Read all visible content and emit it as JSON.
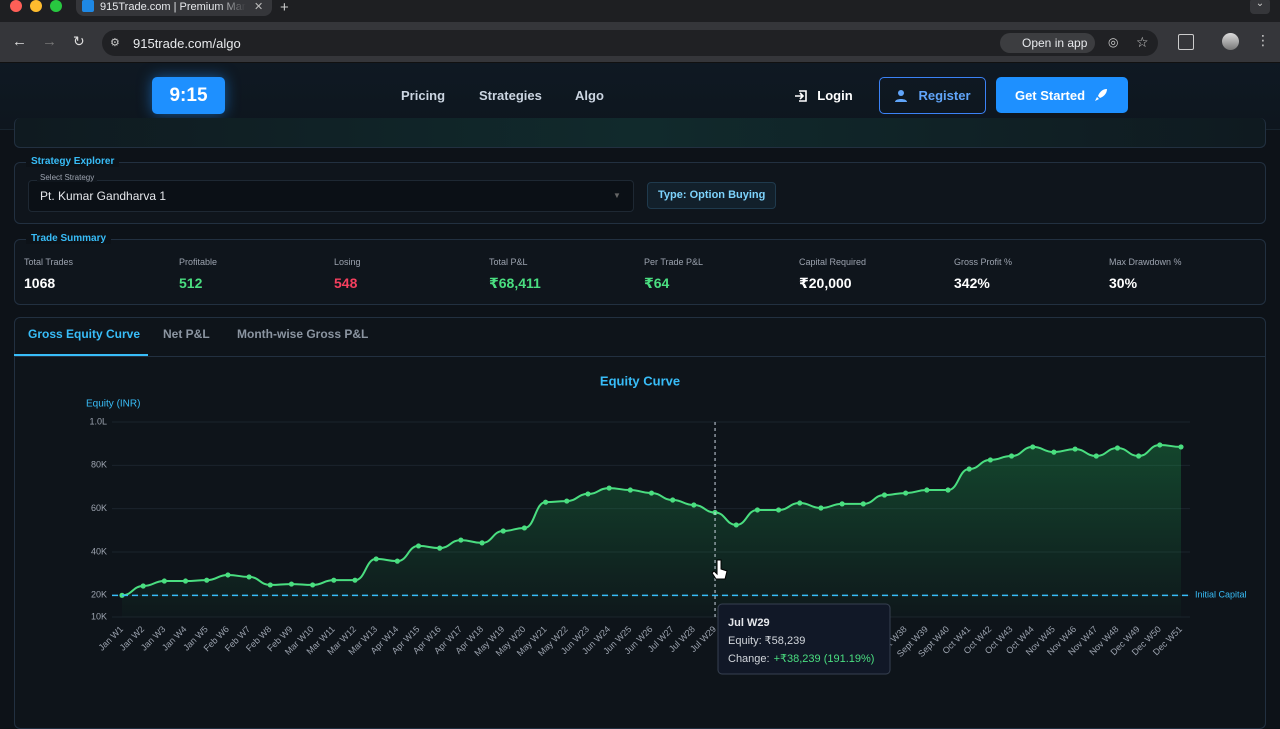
{
  "browser": {
    "tab_title": "915Trade.com | Premium Mar",
    "url": "915trade.com/algo",
    "open_in_app": "Open in app"
  },
  "nav": {
    "logo": "9:15",
    "links": [
      "Pricing",
      "Strategies",
      "Algo"
    ],
    "login": "Login",
    "register": "Register",
    "get_started": "Get Started"
  },
  "strategy_explorer": {
    "title": "Strategy Explorer",
    "select_label": "Select Strategy",
    "selected": "Pt. Kumar Gandharva 1",
    "type_badge": "Type: Option Buying"
  },
  "summary": {
    "title": "Trade Summary",
    "stats": [
      {
        "label": "Total Trades",
        "value": "1068",
        "color": "#ffffff"
      },
      {
        "label": "Profitable",
        "value": "512",
        "color": "#4ade80"
      },
      {
        "label": "Losing",
        "value": "548",
        "color": "#f43f5e"
      },
      {
        "label": "Total P&L",
        "value": "₹68,411",
        "color": "#4ade80"
      },
      {
        "label": "Per Trade P&L",
        "value": "₹64",
        "color": "#4ade80"
      },
      {
        "label": "Capital Required",
        "value": "₹20,000",
        "color": "#ffffff"
      },
      {
        "label": "Gross Profit %",
        "value": "342%",
        "color": "#ffffff"
      },
      {
        "label": "Max Drawdown %",
        "value": "30%",
        "color": "#ffffff"
      }
    ]
  },
  "tabs": [
    "Gross Equity Curve",
    "Net P&L",
    "Month-wise Gross P&L"
  ],
  "chart_data": {
    "type": "line",
    "title": "Equity Curve",
    "y_label": "Equity (INR)",
    "categories": [
      "Jan W1",
      "Jan W2",
      "Jan W3",
      "Jan W4",
      "Jan W5",
      "Feb W6",
      "Feb W7",
      "Feb W8",
      "Feb W9",
      "Mar W10",
      "Mar W11",
      "Mar W12",
      "Mar W13",
      "Apr W14",
      "Apr W15",
      "Apr W16",
      "Apr W17",
      "Apr W18",
      "May W19",
      "May W20",
      "May W21",
      "May W22",
      "Jun W23",
      "Jun W24",
      "Jun W25",
      "Jun W26",
      "Jul W27",
      "Jul W28",
      "Jul W29",
      null,
      null,
      null,
      null,
      null,
      null,
      null,
      null,
      "Sept W38",
      "Sept W39",
      "Sept W40",
      "Oct W41",
      "Oct W42",
      "Oct W43",
      "Oct W44",
      "Nov W45",
      "Nov W46",
      "Nov W47",
      "Nov W48",
      "Dec W49",
      "Dec W50",
      "Dec W51"
    ],
    "values": [
      20000,
      24300,
      26600,
      26600,
      27000,
      29400,
      28500,
      24800,
      25200,
      24800,
      27000,
      27000,
      36800,
      35800,
      42800,
      41800,
      45500,
      44200,
      49700,
      51100,
      63000,
      63500,
      66800,
      69500,
      68600,
      67200,
      64000,
      61700,
      58239,
      52500,
      59400,
      59400,
      62600,
      60300,
      62200,
      62200,
      66300,
      67200,
      68600,
      68600,
      78300,
      82500,
      84300,
      88500,
      86100,
      87500,
      84300,
      88000,
      84300,
      89400,
      88500
    ],
    "color": "#4ade80",
    "ylim": [
      10000,
      100000
    ],
    "yticks": [
      {
        "value": 10000,
        "label": "10K"
      },
      {
        "value": 20000,
        "label": "20K"
      },
      {
        "value": 40000,
        "label": "40K"
      },
      {
        "value": 60000,
        "label": "60K"
      },
      {
        "value": 80000,
        "label": "80K"
      },
      {
        "value": 100000,
        "label": "1.0L"
      }
    ],
    "grid": true,
    "reference_line": {
      "value": 20000,
      "label": "Initial Capital",
      "color": "#38bdf8"
    },
    "tooltip": {
      "title": "Jul W29",
      "equity": "Equity: ₹58,239",
      "change_label": "Change:",
      "change": "+₹38,239 (191.19%)"
    }
  }
}
